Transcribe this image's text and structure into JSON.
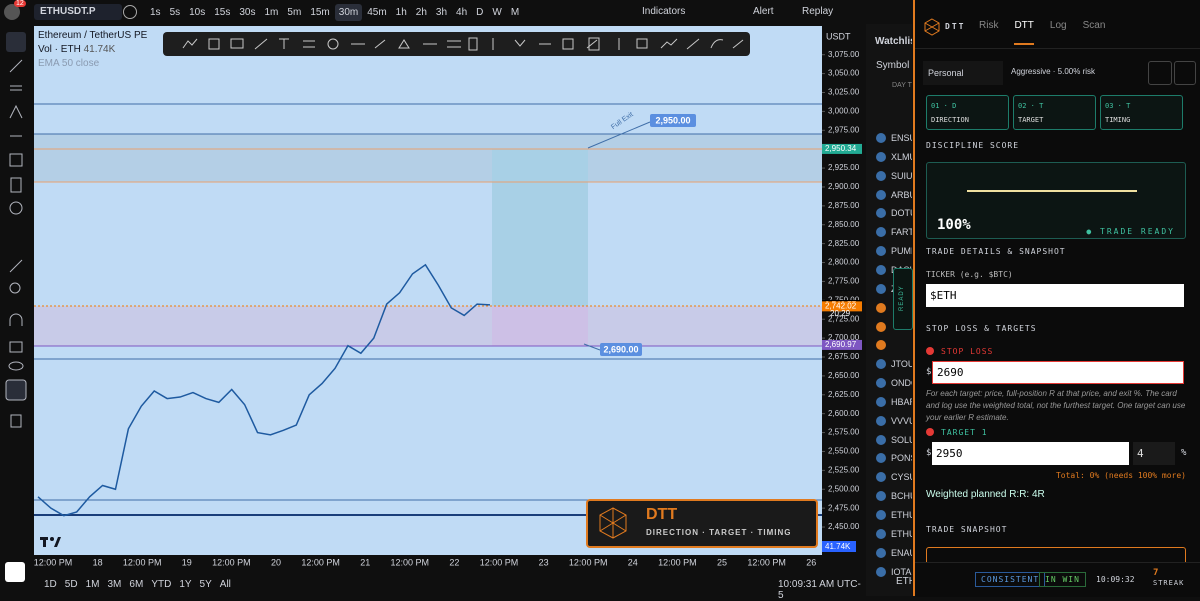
{
  "toolbar": {
    "badge": "12",
    "symbol": "ETHUSDT.P",
    "timeframes": [
      "1s",
      "5s",
      "10s",
      "15s",
      "30s",
      "1m",
      "5m",
      "15m",
      "30m",
      "45m",
      "1h",
      "2h",
      "3h",
      "4h",
      "D",
      "W",
      "M"
    ],
    "active_timeframe": "30m",
    "indicators": "Indicators",
    "alert": "Alert",
    "replay": "Replay"
  },
  "chart": {
    "type": "line",
    "title": "Ethereum / TetherUS PE",
    "volume_label": "Vol · ETH",
    "volume_value": "41.74K",
    "ema_label": "EMA 50 close",
    "currency": "USDT",
    "color": "#1e5aa0",
    "ylim": [
      2413,
      3113
    ],
    "yticks": [
      {
        "value": 3075,
        "label": "3,075.00"
      },
      {
        "value": 3050,
        "label": "3,050.00"
      },
      {
        "value": 3025,
        "label": "3,025.00"
      },
      {
        "value": 3000,
        "label": "3,000.00"
      },
      {
        "value": 2975,
        "label": "2,975.00"
      },
      {
        "value": 2950,
        "label": "2,950.00"
      },
      {
        "value": 2925,
        "label": "2,925.00"
      },
      {
        "value": 2900,
        "label": "2,900.00"
      },
      {
        "value": 2875,
        "label": "2,875.00"
      },
      {
        "value": 2850,
        "label": "2,850.00"
      },
      {
        "value": 2825,
        "label": "2,825.00"
      },
      {
        "value": 2800,
        "label": "2,800.00"
      },
      {
        "value": 2775,
        "label": "2,775.00"
      },
      {
        "value": 2750,
        "label": "2,750.00"
      },
      {
        "value": 2725,
        "label": "2,725.00"
      },
      {
        "value": 2700,
        "label": "2,700.00"
      },
      {
        "value": 2675,
        "label": "2,675.00"
      },
      {
        "value": 2650,
        "label": "2,650.00"
      },
      {
        "value": 2625,
        "label": "2,625.00"
      },
      {
        "value": 2600,
        "label": "2,600.00"
      },
      {
        "value": 2575,
        "label": "2,575.00"
      },
      {
        "value": 2550,
        "label": "2,550.00"
      },
      {
        "value": 2525,
        "label": "2,525.00"
      },
      {
        "value": 2500,
        "label": "2,500.00"
      },
      {
        "value": 2475,
        "label": "2,475.00"
      },
      {
        "value": 2450,
        "label": "2,450.00"
      }
    ],
    "categories": [
      "12:00 PM",
      "18",
      "12:00 PM",
      "19",
      "12:00 PM",
      "20",
      "12:00 PM",
      "21",
      "12:00 PM",
      "22",
      "12:00 PM",
      "23",
      "12:00 PM",
      "24",
      "12:00 PM",
      "25",
      "12:00 PM",
      "26"
    ],
    "values": [
      2490,
      2475,
      2465,
      2470,
      2490,
      2505,
      2500,
      2580,
      2610,
      2630,
      2620,
      2622,
      2628,
      2620,
      2615,
      2632,
      2612,
      2575,
      2572,
      2578,
      2585,
      2625,
      2640,
      2660,
      2690,
      2680,
      2700,
      2745,
      2760,
      2785,
      2797,
      2770,
      2740,
      2730,
      2745,
      2744
    ],
    "price_tags": [
      {
        "value": 2950.34,
        "label": "2,950.34",
        "color": "#22ab94"
      },
      {
        "value": 2743.77,
        "label": "2,743.77",
        "color": "#000000"
      },
      {
        "value": 2742.02,
        "label": "2,742.02",
        "color": "#f57c00"
      },
      {
        "value": 2690.97,
        "label": "2,690.97",
        "color": "#7e57c2"
      }
    ],
    "countdown": "20:29",
    "volume_tag": "41.74K",
    "target_label": "2,950.00",
    "stop_label": "2,690.00",
    "full_exit": "Full Exit",
    "overlay": {
      "title": "DTT",
      "tagline": "DIRECTION · TARGET · TIMING"
    }
  },
  "range_bar": {
    "ranges": [
      "1D",
      "5D",
      "1M",
      "3M",
      "6M",
      "YTD",
      "1Y",
      "5Y",
      "All"
    ],
    "clock": "10:09:31 AM UTC-5"
  },
  "watchlist": {
    "title": "Watchlist",
    "column": "Symbol",
    "section": "DAY T",
    "items": [
      "ENSU",
      "XLMU",
      "SUIUS",
      "ARBU",
      "DOTU",
      "FARTC",
      "PUMP",
      "DASH",
      "ZENU",
      null,
      null,
      null,
      "JTOU",
      "ONDO",
      "HBAR",
      "VVVU",
      "SOLU",
      "PONS",
      "CYSU",
      "BCHU",
      "ETHU",
      "ETHU",
      "ENAU",
      "IOTAU"
    ],
    "footer": "ETH",
    "ready_tab": "READY"
  },
  "panel": {
    "brand": "DTT",
    "tabs": [
      "Risk",
      "DTT",
      "Log",
      "Scan"
    ],
    "active_tab": "DTT",
    "profile": "Personal",
    "risk_mode": "Aggressive · 5.00% risk",
    "steps": [
      {
        "code": "01 · D",
        "name": "DIRECTION"
      },
      {
        "code": "02 · T",
        "name": "TARGET"
      },
      {
        "code": "03 · T",
        "name": "TIMING"
      }
    ],
    "score_heading": "DISCIPLINE SCORE",
    "score": "100%",
    "status": "● TRADE READY",
    "details_heading": "TRADE DETAILS & SNAPSHOT",
    "ticker_label": "TICKER (e.g. $BTC)",
    "ticker": "$ETH",
    "sl_heading": "STOP LOSS & TARGETS",
    "stop_label": "STOP LOSS",
    "currency": "$",
    "stop_value": "2690",
    "help": "For each target: price, full-position R at that price, and exit %. The card and log use the weighted total, not the furthest target. One target can use your earlier R estimate.",
    "target_label": "TARGET 1",
    "target_price": "2950",
    "target_r": "4",
    "percent": "%",
    "total": "Total: 0% (needs 100% more)",
    "weighted": "Weighted planned R:R: 4R",
    "snapshot_heading": "TRADE SNAPSHOT",
    "footer": {
      "consistent": "CONSISTENT",
      "in_win": "IN WIN",
      "time": "10:09:32",
      "streak": "7",
      "streak_label": "STREAK"
    }
  }
}
